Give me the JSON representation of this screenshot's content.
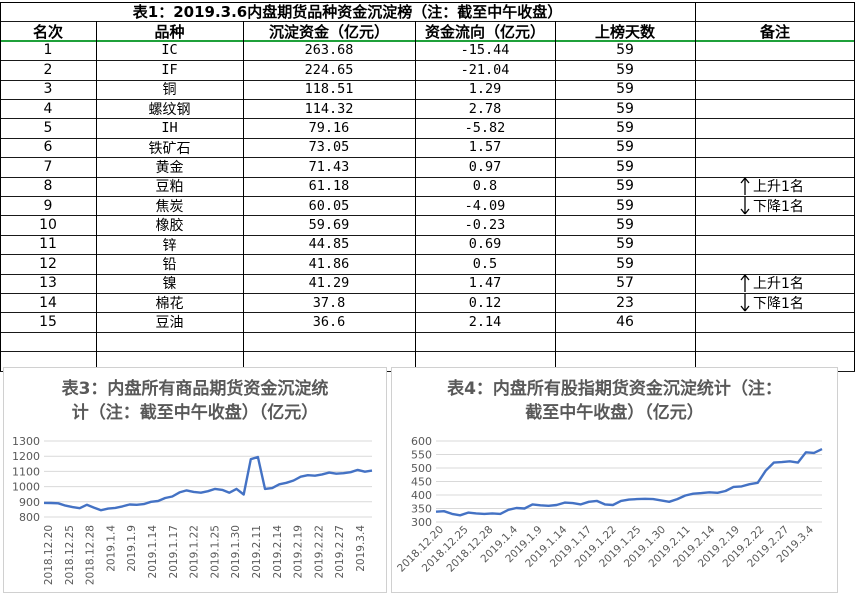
{
  "table": {
    "title": "表1：2019.3.6内盘期货品种资金沉淀榜（注：截至中午收盘）",
    "headers": [
      "名次",
      "品种",
      "沉淀资金（亿元）",
      "资金流向（亿元）",
      "上榜天数",
      "备注"
    ],
    "rows": [
      {
        "rank": "1",
        "name": "IC",
        "fund": "263.68",
        "flow": "-15.44",
        "days": "59",
        "note": ""
      },
      {
        "rank": "2",
        "name": "IF",
        "fund": "224.65",
        "flow": "-21.04",
        "days": "59",
        "note": ""
      },
      {
        "rank": "3",
        "name": "铜",
        "fund": "118.51",
        "flow": "1.29",
        "days": "59",
        "note": ""
      },
      {
        "rank": "4",
        "name": "螺纹钢",
        "fund": "114.32",
        "flow": "2.78",
        "days": "59",
        "note": ""
      },
      {
        "rank": "5",
        "name": "IH",
        "fund": "79.16",
        "flow": "-5.82",
        "days": "59",
        "note": ""
      },
      {
        "rank": "6",
        "name": "铁矿石",
        "fund": "73.05",
        "flow": "1.57",
        "days": "59",
        "note": ""
      },
      {
        "rank": "7",
        "name": "黄金",
        "fund": "71.43",
        "flow": "0.97",
        "days": "59",
        "note": ""
      },
      {
        "rank": "8",
        "name": "豆粕",
        "fund": "61.18",
        "flow": "0.8",
        "days": "59",
        "note": "上升1名",
        "dir": "up"
      },
      {
        "rank": "9",
        "name": "焦炭",
        "fund": "60.05",
        "flow": "-4.09",
        "days": "59",
        "note": "下降1名",
        "dir": "down"
      },
      {
        "rank": "10",
        "name": "橡胶",
        "fund": "59.69",
        "flow": "-0.23",
        "days": "59",
        "note": ""
      },
      {
        "rank": "11",
        "name": "锌",
        "fund": "44.85",
        "flow": "0.69",
        "days": "59",
        "note": ""
      },
      {
        "rank": "12",
        "name": "铅",
        "fund": "41.86",
        "flow": "0.5",
        "days": "59",
        "note": ""
      },
      {
        "rank": "13",
        "name": "镍",
        "fund": "41.29",
        "flow": "1.47",
        "days": "57",
        "note": "上升1名",
        "dir": "up"
      },
      {
        "rank": "14",
        "name": "棉花",
        "fund": "37.8",
        "flow": "0.12",
        "days": "23",
        "note": "下降1名",
        "dir": "down"
      },
      {
        "rank": "15",
        "name": "豆油",
        "fund": "36.6",
        "flow": "2.14",
        "days": "46",
        "note": ""
      }
    ]
  },
  "chart_data": [
    {
      "type": "line",
      "title": "表3：内盘所有商品期货资金沉淀统计（注：截至中午收盘）（亿元）",
      "title_lines": [
        "表3：内盘所有商品期货资金沉淀统",
        "计（注：截至中午收盘）（亿元）"
      ],
      "color": "#4472c4",
      "ylim": [
        800,
        1300
      ],
      "yticks": [
        800,
        900,
        1000,
        1100,
        1200,
        1300
      ],
      "tick_labels": [
        "2018.12.20",
        "2018.12.25",
        "2018.12.28",
        "2019.1.4",
        "2019.1.9",
        "2019.1.14",
        "2019.1.17",
        "2019.1.22",
        "2019.1.25",
        "2019.1.30",
        "2019.2.11",
        "2019.2.14",
        "2019.2.19",
        "2019.2.22",
        "2019.2.27",
        "2019.3.4"
      ],
      "values": [
        893,
        892,
        890,
        875,
        865,
        858,
        880,
        862,
        845,
        855,
        860,
        870,
        882,
        880,
        885,
        900,
        905,
        925,
        935,
        962,
        975,
        965,
        960,
        970,
        985,
        978,
        960,
        985,
        948,
        1180,
        1195,
        985,
        990,
        1015,
        1025,
        1040,
        1065,
        1075,
        1072,
        1080,
        1092,
        1085,
        1088,
        1095,
        1110,
        1098,
        1105
      ]
    },
    {
      "type": "line",
      "title": "表4：内盘所有股指期货资金沉淀统计（注：截至中午收盘）（亿元）",
      "title_lines": [
        "表4：内盘所有股指期货资金沉淀统计（注：",
        "截至中午收盘）（亿元）"
      ],
      "color": "#4472c4",
      "ylim": [
        300,
        600
      ],
      "yticks": [
        300,
        350,
        400,
        450,
        500,
        550,
        600
      ],
      "tick_labels": [
        "2018.12.20",
        "2018.12.25",
        "2018.12.28",
        "2019.1.4",
        "2019.1.9",
        "2019.1.14",
        "2019.1.17",
        "2019.1.22",
        "2019.1.25",
        "2019.1.30",
        "2019.2.11",
        "2019.2.14",
        "2019.2.19",
        "2019.2.22",
        "2019.2.27",
        "2019.3.4"
      ],
      "values": [
        338,
        340,
        330,
        325,
        335,
        332,
        330,
        332,
        330,
        345,
        352,
        350,
        365,
        362,
        360,
        363,
        372,
        370,
        365,
        375,
        378,
        365,
        363,
        378,
        383,
        385,
        386,
        385,
        380,
        375,
        385,
        398,
        405,
        407,
        410,
        408,
        415,
        430,
        432,
        440,
        445,
        490,
        520,
        522,
        525,
        520,
        558,
        556,
        570
      ]
    }
  ]
}
